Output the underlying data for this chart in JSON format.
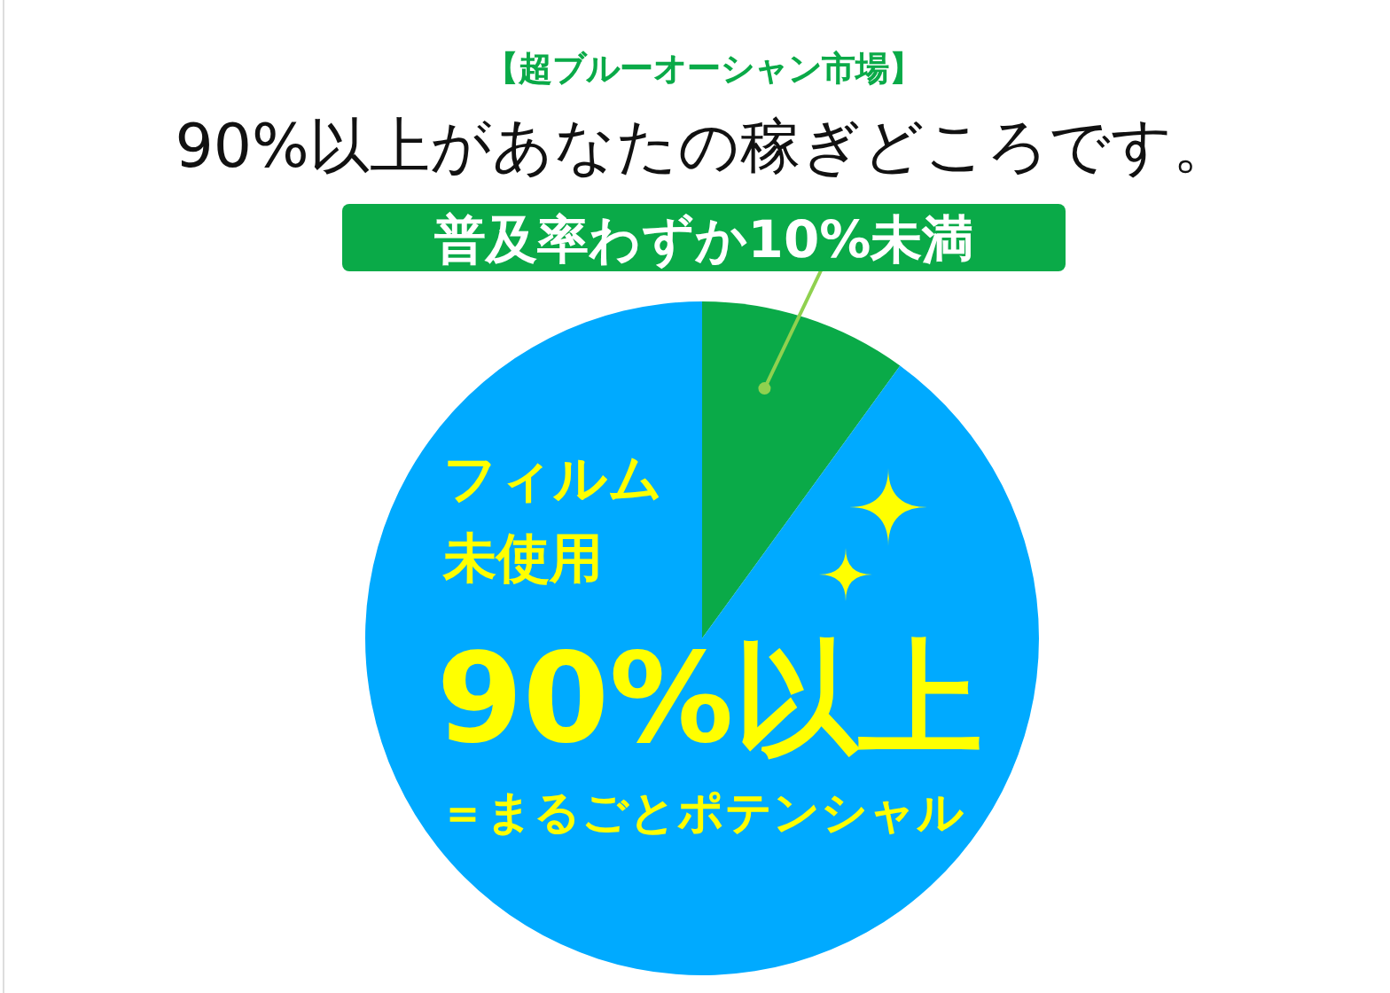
{
  "chart_data": {
    "type": "pie",
    "title": "【超ブルーオーシャン市場】",
    "subtitle": "90%以上があなたの稼ぎどころです。",
    "categories": [
      "普及率わずか10%未満",
      "フィルム未使用"
    ],
    "values": [
      10,
      90
    ],
    "colors": [
      "#0aaa48",
      "#00aaff"
    ],
    "value_labels": [
      null,
      "90%以上"
    ],
    "annotations": [
      "＝まるごとポテンシャル"
    ]
  }
}
